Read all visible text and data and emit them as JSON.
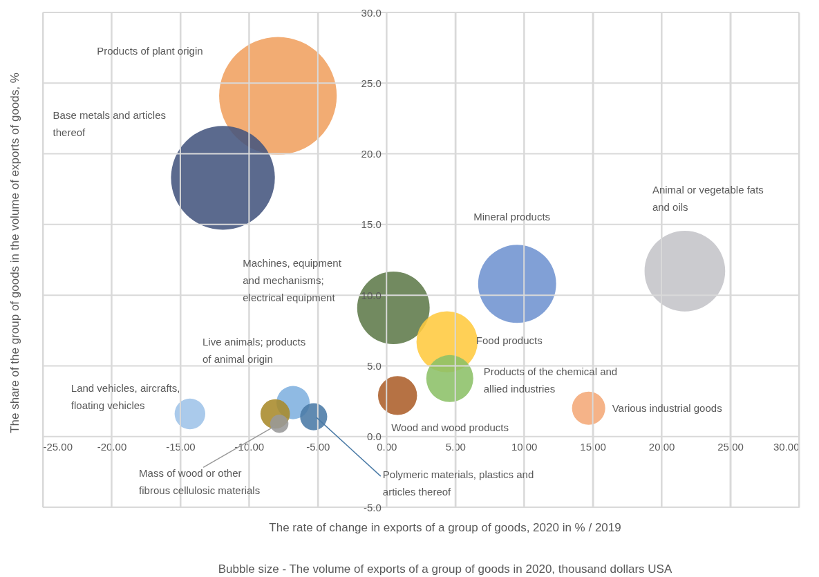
{
  "chart_data": {
    "type": "bubble",
    "xlabel": "The rate of change in exports of a group of goods, 2020 in % / 2019",
    "ylabel": "The share of the group of goods in the volume of exports of goods, %",
    "annotations": [
      "Bubble size - The volume of exports of a group of goods in 2020, thousand dollars USA"
    ],
    "xlim": [
      -25,
      30
    ],
    "xticks": [
      {
        "value": -25,
        "label": "-25.00"
      },
      {
        "value": -20,
        "label": "-20.00"
      },
      {
        "value": -15,
        "label": "-15.00"
      },
      {
        "value": -10,
        "label": "-10.00"
      },
      {
        "value": -5,
        "label": "-5.00"
      },
      {
        "value": 0,
        "label": "0.00"
      },
      {
        "value": 5,
        "label": "5.00"
      },
      {
        "value": 10,
        "label": "10.00"
      },
      {
        "value": 15,
        "label": "15.00"
      },
      {
        "value": 20,
        "label": "20.00"
      },
      {
        "value": 25,
        "label": "25.00"
      },
      {
        "value": 30,
        "label": "30.00"
      }
    ],
    "ylim": [
      -5,
      30
    ],
    "yticks": [
      {
        "value": -5,
        "label": "-5.0"
      },
      {
        "value": 0,
        "label": "0.0"
      },
      {
        "value": 5,
        "label": "5.0"
      },
      {
        "value": 10,
        "label": "10.0"
      },
      {
        "value": 15,
        "label": "15.0"
      },
      {
        "value": 20,
        "label": "20.0"
      },
      {
        "value": 25,
        "label": "25.0"
      },
      {
        "value": 30,
        "label": "30.0"
      }
    ],
    "grid": true,
    "legend": false,
    "series": [
      {
        "name": "Products of plant origin",
        "color": "#f0a060",
        "x": [
          -7.9
        ],
        "values": [
          24.1
        ],
        "sizes": [
          1
        ]
      },
      {
        "name": "Base metals and articles thereof",
        "color": "#44557e",
        "x": [
          -11.9
        ],
        "values": [
          18.3
        ],
        "sizes": [
          0.78
        ]
      },
      {
        "name": "Animal or vegetable fats and oils",
        "color": "#c4c4c8",
        "x": [
          21.7
        ],
        "values": [
          11.7
        ],
        "sizes": [
          0.47
        ]
      },
      {
        "name": "Mineral products",
        "color": "#6f93d0",
        "x": [
          9.5
        ],
        "values": [
          10.8
        ],
        "sizes": [
          0.44
        ]
      },
      {
        "name": "Machines, equipment and mechanisms; electrical equipment",
        "color": "#5f7a4a",
        "x": [
          0.5
        ],
        "values": [
          9.1
        ],
        "sizes": [
          0.38
        ]
      },
      {
        "name": "Food products",
        "color": "#ffc93f",
        "x": [
          4.4
        ],
        "values": [
          6.7
        ],
        "sizes": [
          0.27
        ]
      },
      {
        "name": "Products of the chemical and allied industries",
        "color": "#8cc068",
        "x": [
          4.6
        ],
        "values": [
          4.1
        ],
        "sizes": [
          0.16
        ]
      },
      {
        "name": "Wood and wood products",
        "color": "#ac5e2a",
        "x": [
          0.8
        ],
        "values": [
          2.9
        ],
        "sizes": [
          0.11
        ]
      },
      {
        "name": "Various industrial goods",
        "color": "#f4a877",
        "x": [
          14.7
        ],
        "values": [
          2.0
        ],
        "sizes": [
          0.08
        ]
      },
      {
        "name": "Land vehicles, aircrafts, floating vehicles",
        "color": "#9ec3e8",
        "x": [
          -14.3
        ],
        "values": [
          1.6
        ],
        "sizes": [
          0.068
        ]
      },
      {
        "name": "Live animals; products of animal origin",
        "color": "#7fb0df",
        "x": [
          -6.8
        ],
        "values": [
          2.4
        ],
        "sizes": [
          0.08
        ]
      },
      {
        "color": "#a88a2a",
        "x": [
          -8.1
        ],
        "values": [
          1.6
        ],
        "sizes": [
          0.0625
        ]
      },
      {
        "name": "Mass of wood or other fibrous cellulosic materials",
        "color": "#999999",
        "x": [
          -7.8
        ],
        "values": [
          0.9
        ],
        "sizes": [
          0.024
        ]
      },
      {
        "name": "Polymeric materials, plastics and articles thereof",
        "color": "#4a7aa6",
        "x": [
          -5.3
        ],
        "values": [
          1.4
        ],
        "sizes": [
          0.053
        ]
      }
    ]
  }
}
